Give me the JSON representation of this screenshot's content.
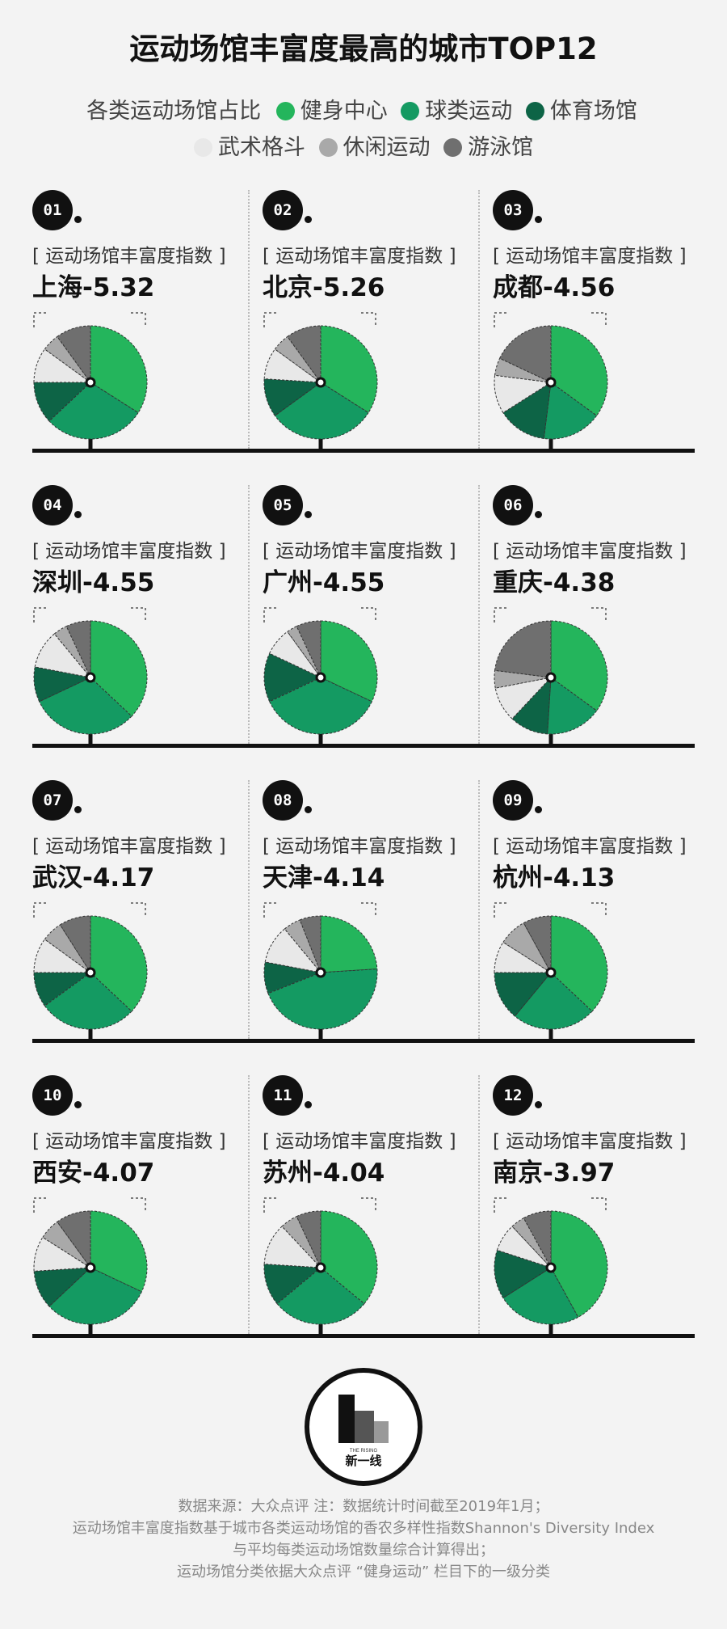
{
  "title": "运动场馆丰富度最高的城市TOP12",
  "legend": {
    "caption": "各类运动场馆占比",
    "items": [
      {
        "name": "健身中心",
        "color": "#24b55c"
      },
      {
        "name": "球类运动",
        "color": "#149a62"
      },
      {
        "name": "体育场馆",
        "color": "#0d6446"
      },
      {
        "name": "武术格斗",
        "color": "#e8e8e8"
      },
      {
        "name": "休闲运动",
        "color": "#a9a9a9"
      },
      {
        "name": "游泳馆",
        "color": "#6f6f6f"
      }
    ]
  },
  "index_label": "[ 运动场馆丰富度指数 ]",
  "chart_data": {
    "type": "pie",
    "title": "运动场馆丰富度最高的城市TOP12",
    "categories": [
      "健身中心",
      "球类运动",
      "体育场馆",
      "武术格斗",
      "休闲运动",
      "游泳馆"
    ],
    "cities": [
      {
        "rank": "01",
        "city": "上海",
        "index": "5.32",
        "label": "上海-5.32",
        "values": [
          0.34,
          0.29,
          0.12,
          0.1,
          0.05,
          0.1
        ]
      },
      {
        "rank": "02",
        "city": "北京",
        "index": "5.26",
        "label": "北京-5.26",
        "values": [
          0.34,
          0.31,
          0.11,
          0.09,
          0.05,
          0.1
        ]
      },
      {
        "rank": "03",
        "city": "成都",
        "index": "4.56",
        "label": "成都-4.56",
        "values": [
          0.35,
          0.17,
          0.14,
          0.11,
          0.05,
          0.18
        ]
      },
      {
        "rank": "04",
        "city": "深圳",
        "index": "4.55",
        "label": "深圳-4.55",
        "values": [
          0.37,
          0.31,
          0.1,
          0.11,
          0.04,
          0.07
        ]
      },
      {
        "rank": "05",
        "city": "广州",
        "index": "4.55",
        "label": "广州-4.55",
        "values": [
          0.32,
          0.36,
          0.14,
          0.08,
          0.03,
          0.07
        ]
      },
      {
        "rank": "06",
        "city": "重庆",
        "index": "4.38",
        "label": "重庆-4.38",
        "values": [
          0.35,
          0.16,
          0.11,
          0.1,
          0.05,
          0.23
        ]
      },
      {
        "rank": "07",
        "city": "武汉",
        "index": "4.17",
        "label": "武汉-4.17",
        "values": [
          0.37,
          0.28,
          0.1,
          0.1,
          0.06,
          0.09
        ]
      },
      {
        "rank": "08",
        "city": "天津",
        "index": "4.14",
        "label": "天津-4.14",
        "values": [
          0.24,
          0.45,
          0.09,
          0.11,
          0.05,
          0.06
        ]
      },
      {
        "rank": "09",
        "city": "杭州",
        "index": "4.13",
        "label": "杭州-4.13",
        "values": [
          0.37,
          0.24,
          0.14,
          0.09,
          0.08,
          0.08
        ]
      },
      {
        "rank": "10",
        "city": "西安",
        "index": "4.07",
        "label": "西安-4.07",
        "values": [
          0.32,
          0.31,
          0.11,
          0.1,
          0.06,
          0.1
        ]
      },
      {
        "rank": "11",
        "city": "苏州",
        "index": "4.04",
        "label": "苏州-4.04",
        "values": [
          0.36,
          0.28,
          0.12,
          0.12,
          0.05,
          0.07
        ]
      },
      {
        "rank": "12",
        "city": "南京",
        "index": "3.97",
        "label": "南京-3.97",
        "values": [
          0.42,
          0.24,
          0.14,
          0.08,
          0.04,
          0.08
        ]
      }
    ]
  },
  "logo": {
    "text": "新一线",
    "subtext": "THE RISING"
  },
  "footer": {
    "lines": [
      "数据来源：大众点评  注：数据统计时间截至2019年1月；",
      "运动场馆丰富度指数基于城市各类运动场馆的香农多样性指数Shannon's Diversity Index",
      "与平均每类运动场馆数量综合计算得出；",
      "运动场馆分类依据大众点评 “健身运动” 栏目下的一级分类"
    ]
  }
}
